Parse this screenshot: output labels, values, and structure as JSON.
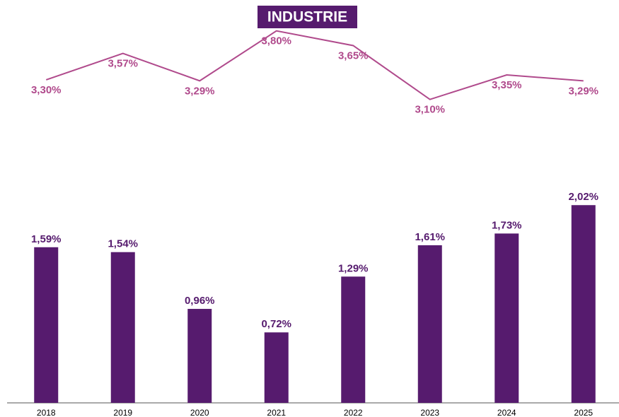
{
  "chart_data": {
    "type": "bar",
    "title": "INDUSTRIE",
    "categories": [
      "2018",
      "2019",
      "2020",
      "2021",
      "2022",
      "2023",
      "2024",
      "2025"
    ],
    "ylim": [
      0,
      4
    ],
    "series": [
      {
        "type": "bar",
        "color": "#561b6e",
        "values": [
          1.59,
          1.54,
          0.96,
          0.72,
          1.29,
          1.61,
          1.73,
          2.02
        ],
        "value_labels": [
          "1,59%",
          "1,54%",
          "0,96%",
          "0,72%",
          "1,29%",
          "1,61%",
          "1,73%",
          "2,02%"
        ]
      },
      {
        "type": "line",
        "color": "#b04a8c",
        "values": [
          3.3,
          3.57,
          3.29,
          3.8,
          3.65,
          3.1,
          3.35,
          3.29
        ],
        "value_labels": [
          "3,30%",
          "3,57%",
          "3,29%",
          "3,80%",
          "3,65%",
          "3,10%",
          "3,35%",
          "3,29%"
        ]
      }
    ]
  }
}
